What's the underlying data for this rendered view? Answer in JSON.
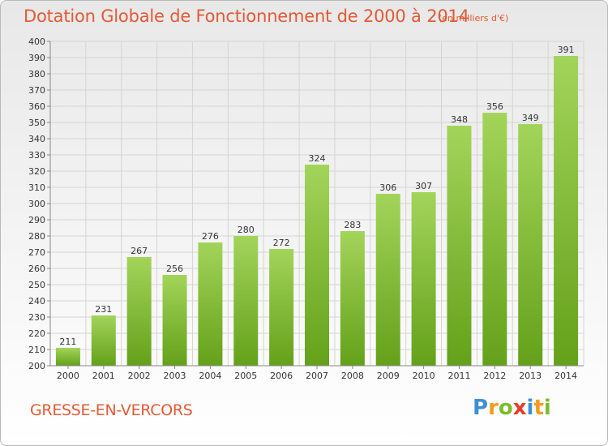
{
  "header": {
    "title": "Dotation Globale de Fonctionnement de 2000 à 2014",
    "unit": "(en milliers d'€)"
  },
  "footer": {
    "commune": "GRESSE-EN-VERCORS",
    "logo": "Proxiti"
  },
  "colors": {
    "title": "#e35a36",
    "bar_top": "#a3d45a",
    "bar_bottom": "#64a11a",
    "grid": "#d4d4d4"
  },
  "chart_data": {
    "type": "bar",
    "title": "Dotation Globale de Fonctionnement de 2000 à 2014",
    "subtitle": "(en milliers d'€)",
    "xlabel": "",
    "ylabel": "",
    "categories": [
      "2000",
      "2001",
      "2002",
      "2003",
      "2004",
      "2005",
      "2006",
      "2007",
      "2008",
      "2009",
      "2010",
      "2011",
      "2012",
      "2013",
      "2014"
    ],
    "values": [
      211,
      231,
      267,
      256,
      276,
      280,
      272,
      324,
      283,
      306,
      307,
      348,
      356,
      349,
      391
    ],
    "ylim": [
      200,
      400
    ],
    "ytick_step": 10,
    "grid": true,
    "legend": "none",
    "data_labels": true
  }
}
